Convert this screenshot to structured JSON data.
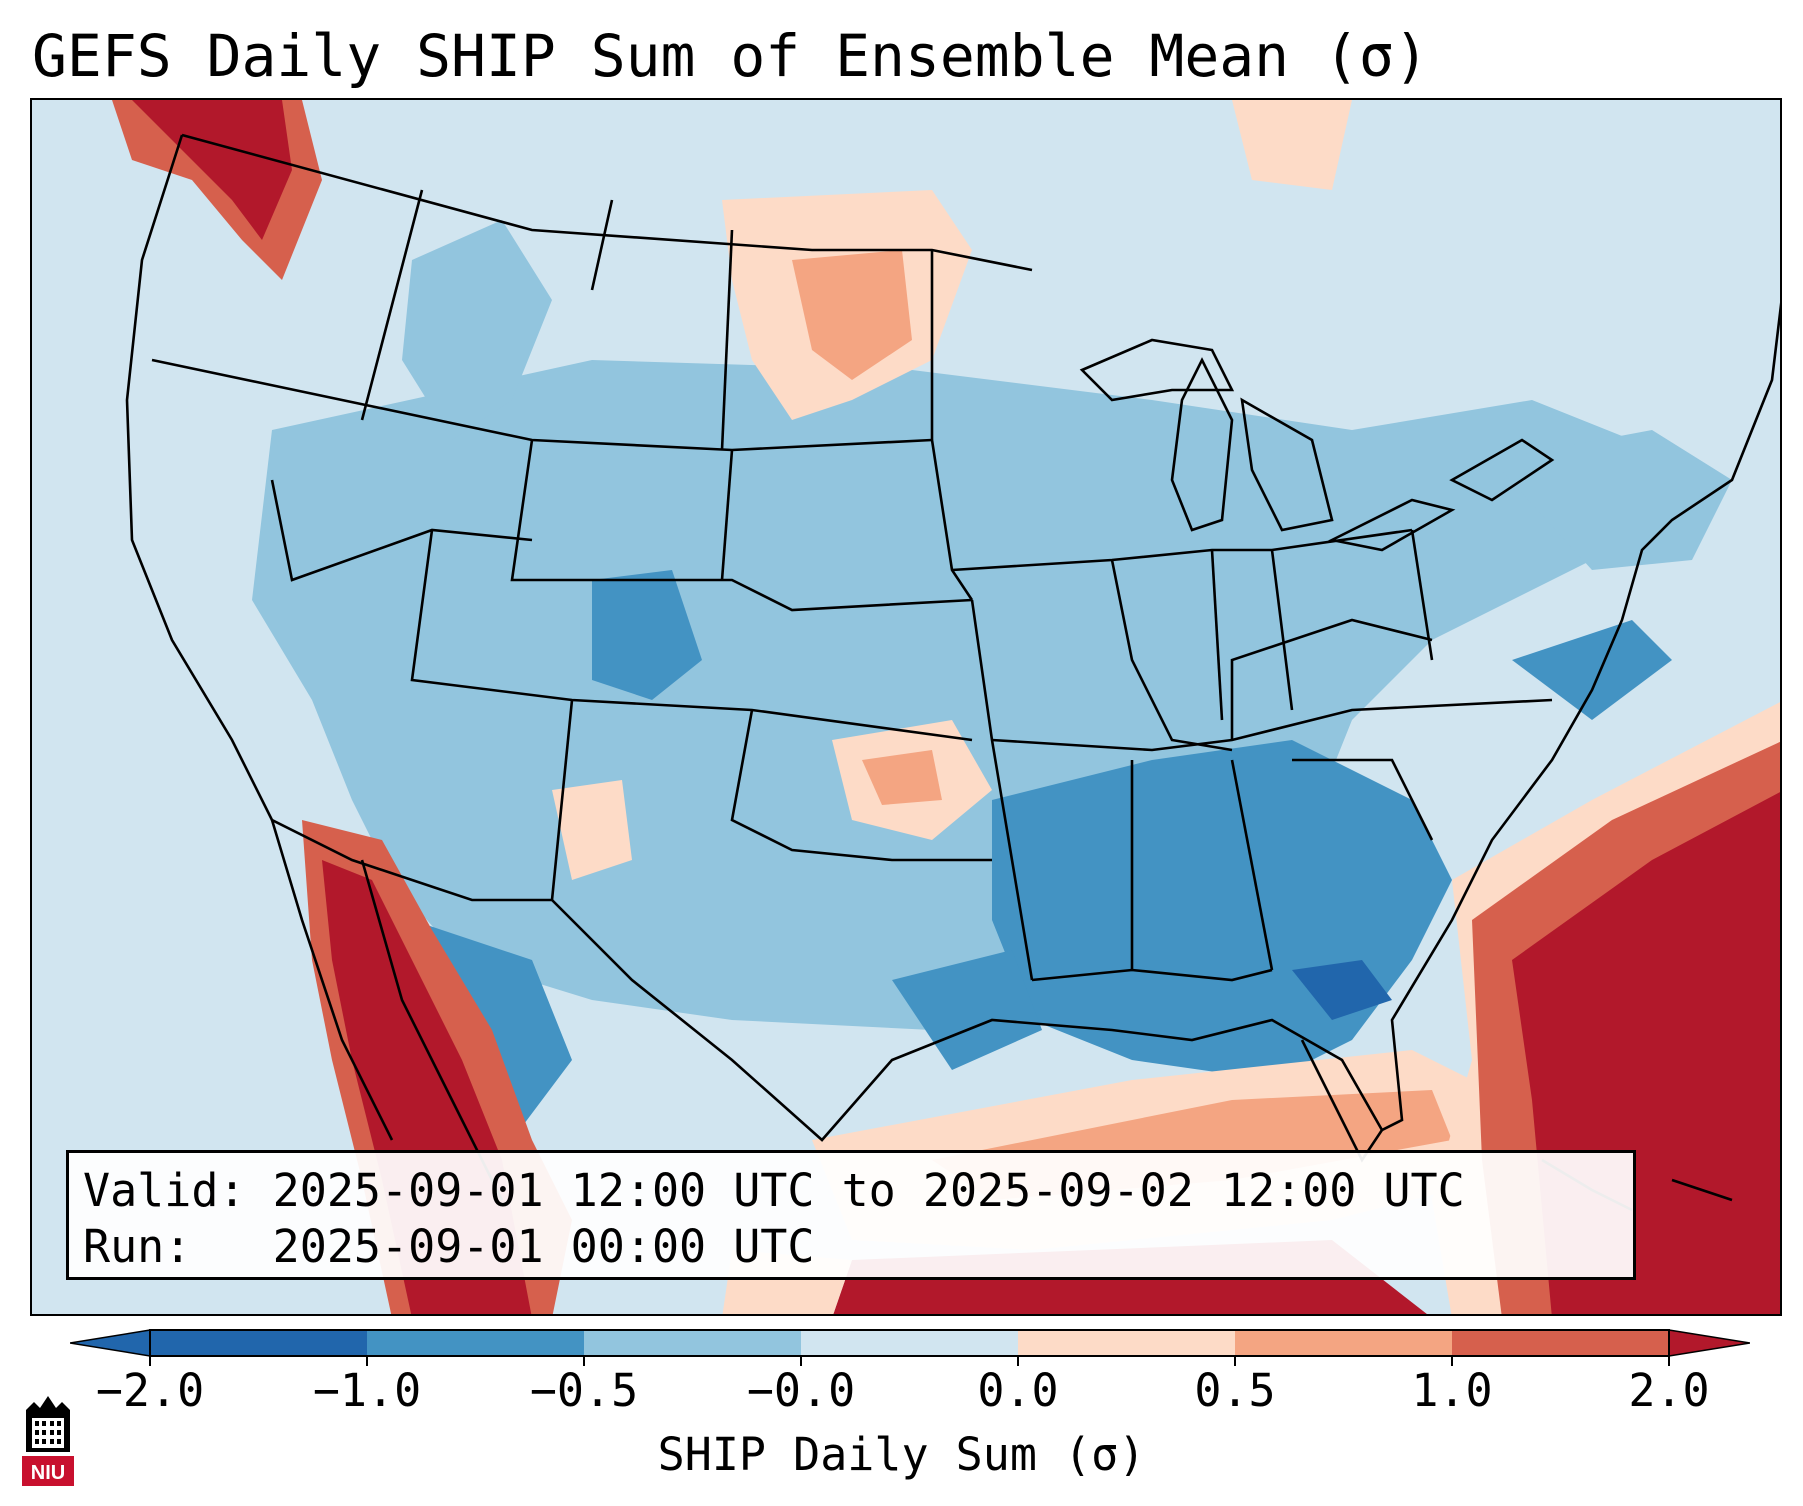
{
  "title": "GEFS Daily SHIP Sum of Ensemble Mean (σ)",
  "info": {
    "valid": "Valid: 2025-09-01 12:00 UTC to 2025-09-02 12:00 UTC",
    "run": "Run:   2025-09-01 00:00 UTC"
  },
  "colorbar": {
    "label": "SHIP Daily Sum (σ)",
    "ticks": [
      "−2.0",
      "−1.0",
      "−0.5",
      "−0.0",
      "0.0",
      "0.5",
      "1.0",
      "2.0"
    ],
    "colors": [
      "#2166ac",
      "#4393c3",
      "#92c5de",
      "#d1e5f0",
      "#fddbc7",
      "#f4a582",
      "#d6604d",
      "#b2182b"
    ],
    "extend": "both"
  },
  "logo": {
    "text": "NIU",
    "colors": {
      "red": "#c8102e",
      "black": "#000000"
    }
  },
  "map": {
    "projection": "Lambert Conformal",
    "region": "Contiguous United States",
    "land_water_background": "#d1e5f0",
    "features": [
      "state boundaries",
      "country boundaries",
      "coastlines",
      "Great Lakes"
    ]
  }
}
